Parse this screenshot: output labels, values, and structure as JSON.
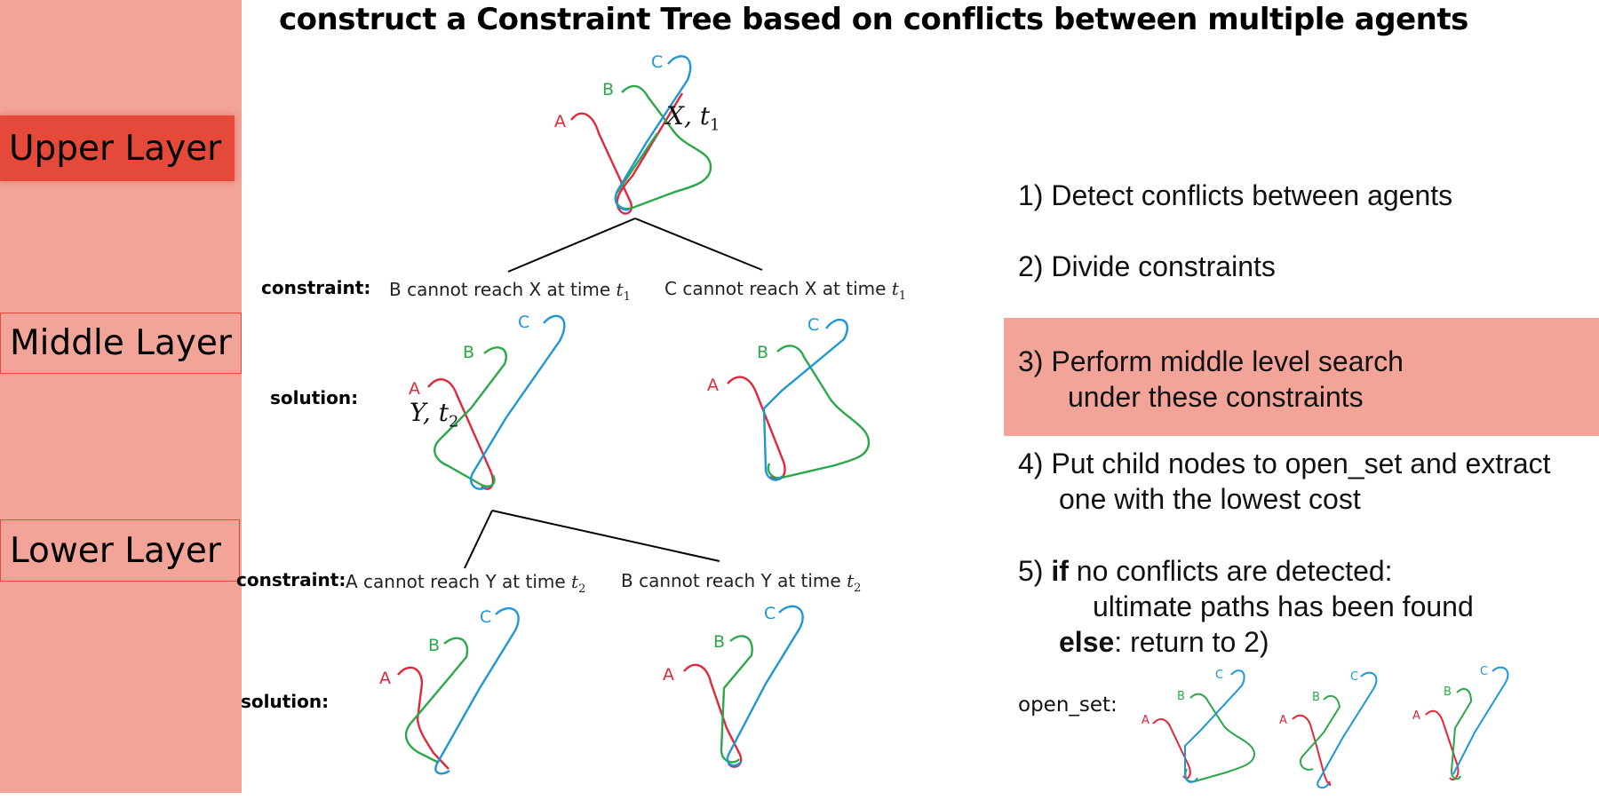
{
  "title": "construct a Constraint Tree based on conflicts between multiple agents",
  "layers": {
    "upper": "Upper Layer",
    "middle": "Middle Layer",
    "lower": "Lower Layer"
  },
  "labels": {
    "constraint": "constraint:",
    "solution": "solution:",
    "open_set": "open_set:"
  },
  "agents": {
    "a": "A",
    "b": "B",
    "c": "C"
  },
  "conflicts": {
    "first": {
      "loc": "X",
      "time": "t",
      "sub": "1"
    },
    "second": {
      "loc": "Y",
      "time": "t",
      "sub": "2"
    }
  },
  "constraints": {
    "mid_left": {
      "text": "B cannot reach X at time ",
      "var": "t",
      "sub": "1"
    },
    "mid_right": {
      "text": "C cannot reach X at time ",
      "var": "t",
      "sub": "1"
    },
    "low_left": {
      "text": "A cannot reach Y at time ",
      "var": "t",
      "sub": "2"
    },
    "low_right": {
      "text": "B cannot reach Y at time ",
      "var": "t",
      "sub": "2"
    }
  },
  "steps": {
    "s1": "1)  Detect conflicts between agents",
    "s2": "2)  Divide constraints",
    "s3_line1": "3)  Perform middle level search",
    "s3_line2": "under these constraints",
    "s4_line1": "4)  Put child nodes to open_set and extract",
    "s4_line2": "one with the lowest cost",
    "s5_prefix": "5)  ",
    "s5_if": "if",
    "s5_line1_rest": " no conflicts are detected:",
    "s5_line2": "ultimate paths has been found",
    "s5_else": "else",
    "s5_line3_rest": ":  return to 2)"
  },
  "colors": {
    "sidebar": "#f2a498",
    "upper_layer": "#e4493a",
    "agent_a": "#e0283a",
    "agent_b": "#2aa84a",
    "agent_c": "#1f96d6"
  }
}
